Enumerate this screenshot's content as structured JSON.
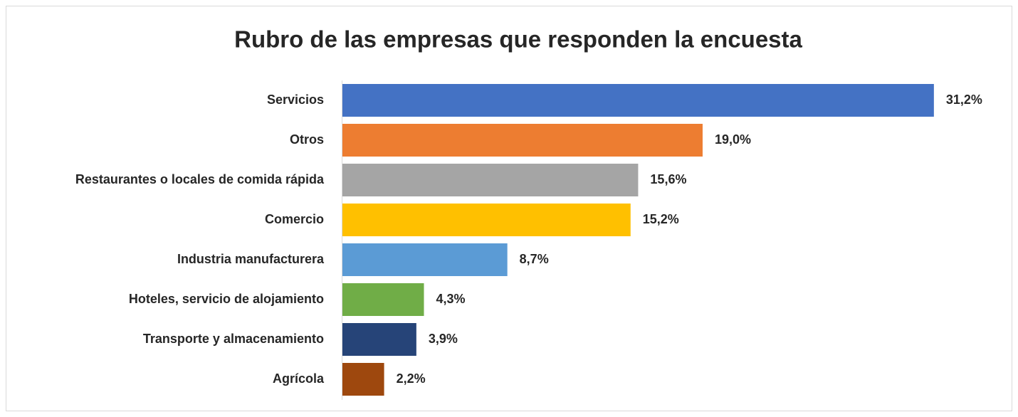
{
  "chart_data": {
    "type": "bar",
    "orientation": "horizontal",
    "title": "Rubro de las empresas que responden la encuesta",
    "categories": [
      "Servicios",
      "Otros",
      "Restaurantes o locales de comida rápida",
      "Comercio",
      "Industria manufacturera",
      "Hoteles, servicio de alojamiento",
      "Transporte y almacenamiento",
      "Agrícola"
    ],
    "values": [
      31.2,
      19.0,
      15.6,
      15.2,
      8.7,
      4.3,
      3.9,
      2.2
    ],
    "value_labels": [
      "31,2%",
      "19,0%",
      "15,6%",
      "15,2%",
      "8,7%",
      "4,3%",
      "3,9%",
      "2,2%"
    ],
    "colors": [
      "#4472c4",
      "#ed7d31",
      "#a5a5a5",
      "#ffc000",
      "#5b9bd5",
      "#70ad47",
      "#264478",
      "#9e480e"
    ]
  }
}
